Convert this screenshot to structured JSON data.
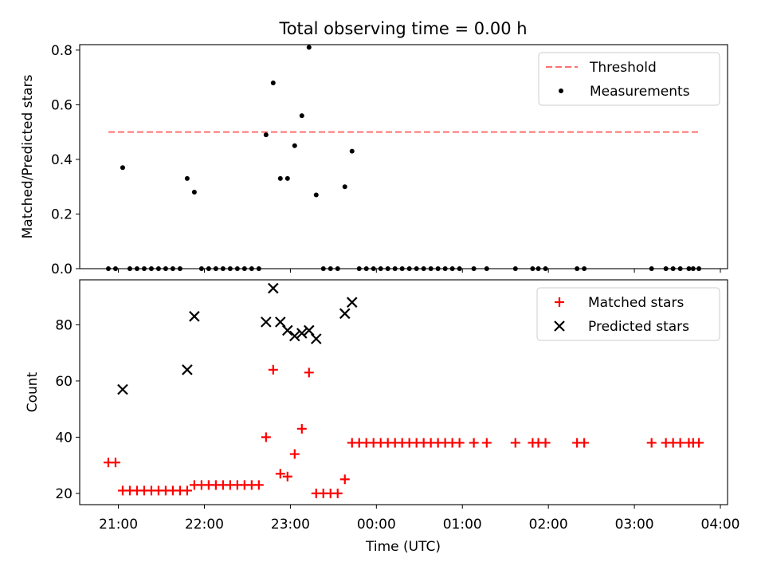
{
  "figure": {
    "title": "Total observing time = 0.00 h",
    "xlabel": "Time (UTC)",
    "x_ticks": [
      "21:00",
      "22:00",
      "23:00",
      "00:00",
      "01:00",
      "02:00",
      "03:00",
      "04:00"
    ]
  },
  "colors": {
    "threshold": "#ff7070",
    "measurements": "#000000",
    "matched": "#ff0000",
    "predicted": "#000000"
  },
  "chart_data": [
    {
      "type": "scatter",
      "ylabel": "Matched/Predicted stars",
      "xlim": [
        "20:33",
        "04:05"
      ],
      "ylim": [
        0,
        0.82
      ],
      "y_ticks": [
        "0.0",
        "0.2",
        "0.4",
        "0.6",
        "0.8"
      ],
      "y_tick_values": [
        0,
        0.2,
        0.4,
        0.6,
        0.8
      ],
      "grid": false,
      "legend_position": "top-right",
      "threshold": {
        "name": "Threshold",
        "value": 0.5,
        "x_range": [
          "20:53",
          "03:45"
        ]
      },
      "series": [
        {
          "name": "Measurements",
          "points": [
            [
              "20:53",
              0.0
            ],
            [
              "20:58",
              0.0
            ],
            [
              "21:03",
              0.37
            ],
            [
              "21:08",
              0.0
            ],
            [
              "21:13",
              0.0
            ],
            [
              "21:18",
              0.0
            ],
            [
              "21:23",
              0.0
            ],
            [
              "21:28",
              0.0
            ],
            [
              "21:33",
              0.0
            ],
            [
              "21:38",
              0.0
            ],
            [
              "21:43",
              0.0
            ],
            [
              "21:48",
              0.33
            ],
            [
              "21:53",
              0.28
            ],
            [
              "21:58",
              0.0
            ],
            [
              "22:03",
              0.0
            ],
            [
              "22:08",
              0.0
            ],
            [
              "22:13",
              0.0
            ],
            [
              "22:18",
              0.0
            ],
            [
              "22:23",
              0.0
            ],
            [
              "22:28",
              0.0
            ],
            [
              "22:33",
              0.0
            ],
            [
              "22:38",
              0.0
            ],
            [
              "22:43",
              0.49
            ],
            [
              "22:48",
              0.68
            ],
            [
              "22:53",
              0.33
            ],
            [
              "22:58",
              0.33
            ],
            [
              "23:03",
              0.45
            ],
            [
              "23:08",
              0.56
            ],
            [
              "23:13",
              0.81
            ],
            [
              "23:18",
              0.27
            ],
            [
              "23:23",
              0.0
            ],
            [
              "23:28",
              0.0
            ],
            [
              "23:33",
              0.0
            ],
            [
              "23:38",
              0.3
            ],
            [
              "23:43",
              0.43
            ],
            [
              "23:48",
              0.0
            ],
            [
              "23:53",
              0.0
            ],
            [
              "23:58",
              0.0
            ],
            [
              "00:03",
              0.0
            ],
            [
              "00:08",
              0.0
            ],
            [
              "00:13",
              0.0
            ],
            [
              "00:18",
              0.0
            ],
            [
              "00:23",
              0.0
            ],
            [
              "00:28",
              0.0
            ],
            [
              "00:33",
              0.0
            ],
            [
              "00:38",
              0.0
            ],
            [
              "00:43",
              0.0
            ],
            [
              "00:48",
              0.0
            ],
            [
              "00:53",
              0.0
            ],
            [
              "00:58",
              0.0
            ],
            [
              "01:08",
              0.0
            ],
            [
              "01:17",
              0.0
            ],
            [
              "01:37",
              0.0
            ],
            [
              "01:49",
              0.0
            ],
            [
              "01:53",
              0.0
            ],
            [
              "01:58",
              0.0
            ],
            [
              "02:20",
              0.0
            ],
            [
              "02:25",
              0.0
            ],
            [
              "03:12",
              0.0
            ],
            [
              "03:22",
              0.0
            ],
            [
              "03:27",
              0.0
            ],
            [
              "03:32",
              0.0
            ],
            [
              "03:38",
              0.0
            ],
            [
              "03:41",
              0.0
            ],
            [
              "03:45",
              0.0
            ]
          ]
        }
      ]
    },
    {
      "type": "scatter",
      "ylabel": "Count",
      "xlabel": "Time (UTC)",
      "xlim": [
        "20:33",
        "04:05"
      ],
      "ylim": [
        16,
        96
      ],
      "y_ticks": [
        "20",
        "40",
        "60",
        "80"
      ],
      "y_tick_values": [
        20,
        40,
        60,
        80
      ],
      "grid": false,
      "legend_position": "top-right",
      "series": [
        {
          "name": "Matched stars",
          "marker": "plus",
          "points": [
            [
              "20:53",
              31
            ],
            [
              "20:58",
              31
            ],
            [
              "21:03",
              21
            ],
            [
              "21:08",
              21
            ],
            [
              "21:13",
              21
            ],
            [
              "21:18",
              21
            ],
            [
              "21:23",
              21
            ],
            [
              "21:28",
              21
            ],
            [
              "21:33",
              21
            ],
            [
              "21:38",
              21
            ],
            [
              "21:43",
              21
            ],
            [
              "21:48",
              21
            ],
            [
              "21:53",
              23
            ],
            [
              "21:58",
              23
            ],
            [
              "22:03",
              23
            ],
            [
              "22:08",
              23
            ],
            [
              "22:13",
              23
            ],
            [
              "22:18",
              23
            ],
            [
              "22:23",
              23
            ],
            [
              "22:28",
              23
            ],
            [
              "22:33",
              23
            ],
            [
              "22:38",
              23
            ],
            [
              "22:43",
              40
            ],
            [
              "22:48",
              64
            ],
            [
              "22:53",
              27
            ],
            [
              "22:58",
              26
            ],
            [
              "23:03",
              34
            ],
            [
              "23:08",
              43
            ],
            [
              "23:13",
              63
            ],
            [
              "23:18",
              20
            ],
            [
              "23:23",
              20
            ],
            [
              "23:28",
              20
            ],
            [
              "23:33",
              20
            ],
            [
              "23:38",
              25
            ],
            [
              "23:43",
              38
            ],
            [
              "23:48",
              38
            ],
            [
              "23:53",
              38
            ],
            [
              "23:58",
              38
            ],
            [
              "00:03",
              38
            ],
            [
              "00:08",
              38
            ],
            [
              "00:13",
              38
            ],
            [
              "00:18",
              38
            ],
            [
              "00:23",
              38
            ],
            [
              "00:28",
              38
            ],
            [
              "00:33",
              38
            ],
            [
              "00:38",
              38
            ],
            [
              "00:43",
              38
            ],
            [
              "00:48",
              38
            ],
            [
              "00:53",
              38
            ],
            [
              "00:58",
              38
            ],
            [
              "01:08",
              38
            ],
            [
              "01:17",
              38
            ],
            [
              "01:37",
              38
            ],
            [
              "01:49",
              38
            ],
            [
              "01:53",
              38
            ],
            [
              "01:58",
              38
            ],
            [
              "02:20",
              38
            ],
            [
              "02:25",
              38
            ],
            [
              "03:12",
              38
            ],
            [
              "03:22",
              38
            ],
            [
              "03:27",
              38
            ],
            [
              "03:32",
              38
            ],
            [
              "03:38",
              38
            ],
            [
              "03:41",
              38
            ],
            [
              "03:45",
              38
            ]
          ]
        },
        {
          "name": "Predicted stars",
          "marker": "x",
          "points": [
            [
              "21:03",
              57
            ],
            [
              "21:48",
              64
            ],
            [
              "21:53",
              83
            ],
            [
              "22:43",
              81
            ],
            [
              "22:48",
              93
            ],
            [
              "22:53",
              81
            ],
            [
              "22:58",
              78
            ],
            [
              "23:03",
              76
            ],
            [
              "23:08",
              77
            ],
            [
              "23:13",
              78
            ],
            [
              "23:18",
              75
            ],
            [
              "23:38",
              84
            ],
            [
              "23:43",
              88
            ]
          ]
        }
      ]
    }
  ]
}
